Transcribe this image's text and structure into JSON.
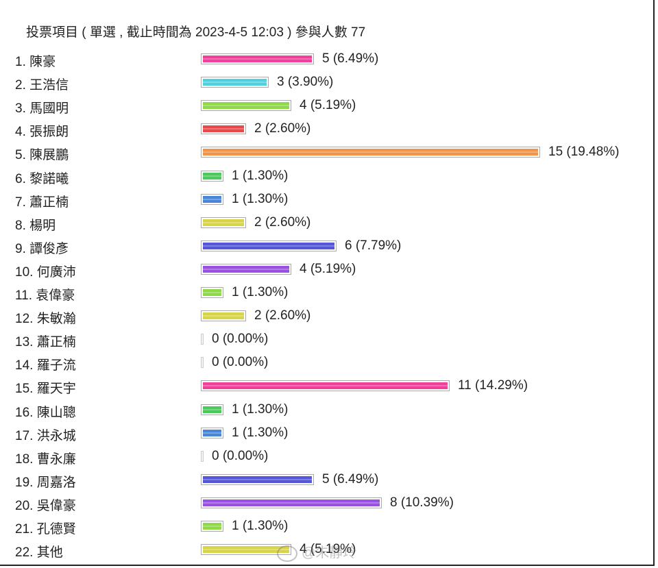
{
  "chart_data": {
    "type": "bar",
    "orientation": "horizontal",
    "title": "投票項目 ( 單選 , 截止時間為 2023-4-5 12:03 ) 參與人數 77",
    "categories": [
      "1. 陳豪",
      "2. 王浩信",
      "3. 馬國明",
      "4. 張振朗",
      "5. 陳展鵬",
      "6. 黎諾曦",
      "7. 蕭正楠",
      "8. 楊明",
      "9. 譚俊彥",
      "10. 何廣沛",
      "11. 袁偉豪",
      "12. 朱敏瀚",
      "13. 蕭正楠",
      "14. 羅子流",
      "15. 羅天宇",
      "16. 陳山聰",
      "17. 洪永城",
      "18. 曹永廉",
      "19. 周嘉洛",
      "20. 吳偉豪",
      "21. 孔德賢",
      "22. 其他"
    ],
    "values": [
      5,
      3,
      4,
      2,
      15,
      1,
      1,
      2,
      6,
      4,
      1,
      2,
      0,
      0,
      11,
      1,
      1,
      0,
      5,
      8,
      1,
      4
    ],
    "value_labels": [
      "5 (6.49%)",
      "3 (3.90%)",
      "4 (5.19%)",
      "2 (2.60%)",
      "15 (19.48%)",
      "1 (1.30%)",
      "1 (1.30%)",
      "2 (2.60%)",
      "6 (7.79%)",
      "4 (5.19%)",
      "1 (1.30%)",
      "2 (2.60%)",
      "0 (0.00%)",
      "0 (0.00%)",
      "11 (14.29%)",
      "1 (1.30%)",
      "1 (1.30%)",
      "0 (0.00%)",
      "5 (6.49%)",
      "8 (10.39%)",
      "1 (1.30%)",
      "4 (5.19%)"
    ],
    "colors": [
      "#f0409a",
      "#4fd0dc",
      "#8fd84a",
      "#e84848",
      "#f0944a",
      "#4cc85c",
      "#4a86d8",
      "#d8d448",
      "#5656d8",
      "#9a50e0",
      "#8fd84a",
      "#d8d448",
      "#f0f0f0",
      "#f0f0f0",
      "#f0409a",
      "#4cc85c",
      "#4a86d8",
      "#f0f0f0",
      "#5656d8",
      "#9a50e0",
      "#8fd84a",
      "#d8d448"
    ],
    "xlim": [
      0,
      15
    ],
    "grid": false,
    "legend": "none"
  },
  "watermark": "@朱靜玲"
}
